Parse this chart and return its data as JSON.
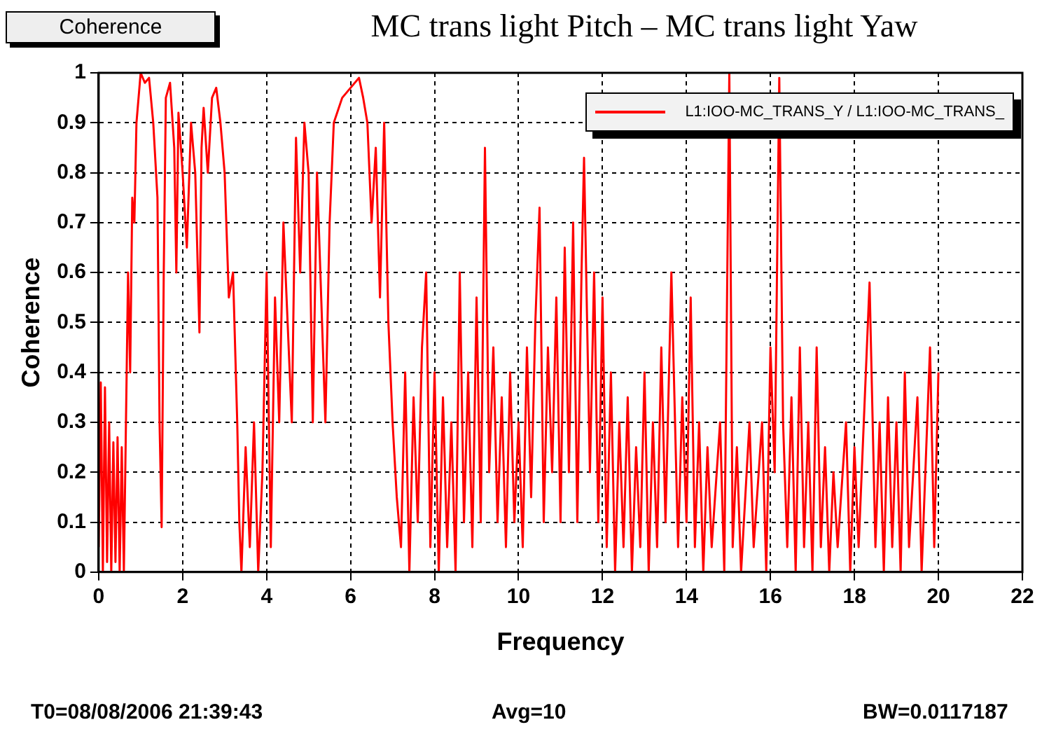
{
  "chart_data": {
    "type": "line",
    "title": "MC trans light Pitch – MC trans light Yaw",
    "xlabel": "Frequency",
    "ylabel": "Coherence",
    "annotations": [
      "Coherence",
      "T0=08/08/2006 21:39:43",
      "Avg=10",
      "BW=0.0117187"
    ],
    "xlim": [
      0,
      22
    ],
    "xticks": [
      0,
      2,
      4,
      6,
      8,
      10,
      12,
      14,
      16,
      18,
      20,
      22
    ],
    "ylim": [
      0,
      1
    ],
    "yticks": [
      0,
      0.1,
      0.2,
      0.3,
      0.4,
      0.5,
      0.6,
      0.7,
      0.8,
      0.9,
      1
    ],
    "grid": true,
    "legend": "top right",
    "marker": "none",
    "line_style": "solid",
    "series": [
      {
        "name": "L1:IOO-MC_TRANS_Y / L1:IOO-MC_TRANS_",
        "color": "#ff0000",
        "x": [
          0,
          0.05,
          0.1,
          0.15,
          0.2,
          0.25,
          0.3,
          0.35,
          0.4,
          0.45,
          0.5,
          0.55,
          0.6,
          0.65,
          0.7,
          0.75,
          0.8,
          0.85,
          0.9,
          1.0,
          1.1,
          1.2,
          1.3,
          1.4,
          1.45,
          1.5,
          1.55,
          1.6,
          1.7,
          1.8,
          1.85,
          1.9,
          2.0,
          2.1,
          2.2,
          2.3,
          2.4,
          2.45,
          2.5,
          2.6,
          2.7,
          2.8,
          2.9,
          3.0,
          3.1,
          3.2,
          3.3,
          3.35,
          3.4,
          3.5,
          3.6,
          3.7,
          3.8,
          3.9,
          4.0,
          4.1,
          4.2,
          4.3,
          4.4,
          4.5,
          4.6,
          4.7,
          4.8,
          4.9,
          5.0,
          5.1,
          5.2,
          5.3,
          5.4,
          5.5,
          5.6,
          5.8,
          6.0,
          6.2,
          6.3,
          6.4,
          6.5,
          6.6,
          6.7,
          6.8,
          6.9,
          7.0,
          7.1,
          7.2,
          7.3,
          7.4,
          7.5,
          7.6,
          7.7,
          7.8,
          7.9,
          8.0,
          8.1,
          8.2,
          8.3,
          8.4,
          8.5,
          8.6,
          8.7,
          8.8,
          8.9,
          9.0,
          9.1,
          9.2,
          9.3,
          9.4,
          9.5,
          9.6,
          9.7,
          9.8,
          9.9,
          10.0,
          10.1,
          10.2,
          10.3,
          10.4,
          10.5,
          10.6,
          10.7,
          10.8,
          10.9,
          11.0,
          11.1,
          11.2,
          11.3,
          11.4,
          11.5,
          11.56,
          11.7,
          11.8,
          11.9,
          12.0,
          12.1,
          12.2,
          12.3,
          12.4,
          12.5,
          12.6,
          12.7,
          12.8,
          12.9,
          13.0,
          13.1,
          13.2,
          13.3,
          13.4,
          13.5,
          13.64,
          13.8,
          13.9,
          14.0,
          14.1,
          14.2,
          14.3,
          14.4,
          14.5,
          14.6,
          14.8,
          14.9,
          15.02,
          15.1,
          15.2,
          15.3,
          15.5,
          15.6,
          15.8,
          15.9,
          16.0,
          16.1,
          16.21,
          16.3,
          16.4,
          16.5,
          16.6,
          16.7,
          16.8,
          16.9,
          17.0,
          17.1,
          17.2,
          17.3,
          17.4,
          17.5,
          17.6,
          17.8,
          17.9,
          18.0,
          18.1,
          18.36,
          18.5,
          18.6,
          18.7,
          18.8,
          18.9,
          19.0,
          19.1,
          19.2,
          19.3,
          19.5,
          19.6,
          19.8,
          19.9,
          20.0
        ],
        "values": [
          0.05,
          0.38,
          0.0,
          0.37,
          0.02,
          0.3,
          0.0,
          0.26,
          0.02,
          0.27,
          0.0,
          0.25,
          0.0,
          0.3,
          0.6,
          0.4,
          0.75,
          0.7,
          0.9,
          1.0,
          0.98,
          0.99,
          0.9,
          0.75,
          0.3,
          0.09,
          0.6,
          0.95,
          0.98,
          0.85,
          0.6,
          0.92,
          0.8,
          0.65,
          0.9,
          0.8,
          0.48,
          0.85,
          0.93,
          0.8,
          0.95,
          0.97,
          0.9,
          0.8,
          0.55,
          0.6,
          0.3,
          0.1,
          0.0,
          0.25,
          0.05,
          0.3,
          0.0,
          0.2,
          0.6,
          0.05,
          0.55,
          0.3,
          0.7,
          0.5,
          0.3,
          0.87,
          0.6,
          0.9,
          0.8,
          0.3,
          0.8,
          0.55,
          0.3,
          0.7,
          0.9,
          0.95,
          0.97,
          0.99,
          0.95,
          0.9,
          0.7,
          0.85,
          0.55,
          0.9,
          0.5,
          0.3,
          0.15,
          0.05,
          0.4,
          0.0,
          0.35,
          0.1,
          0.45,
          0.6,
          0.05,
          0.4,
          0.0,
          0.35,
          0.05,
          0.3,
          0.0,
          0.6,
          0.1,
          0.4,
          0.05,
          0.55,
          0.1,
          0.85,
          0.2,
          0.45,
          0.1,
          0.35,
          0.05,
          0.4,
          0.1,
          0.3,
          0.05,
          0.45,
          0.15,
          0.5,
          0.73,
          0.1,
          0.45,
          0.2,
          0.55,
          0.1,
          0.65,
          0.2,
          0.7,
          0.1,
          0.6,
          0.83,
          0.2,
          0.6,
          0.1,
          0.55,
          0.05,
          0.4,
          0.0,
          0.3,
          0.05,
          0.35,
          0.0,
          0.25,
          0.05,
          0.4,
          0.0,
          0.3,
          0.05,
          0.45,
          0.1,
          0.6,
          0.05,
          0.35,
          0.1,
          0.55,
          0.05,
          0.3,
          0.0,
          0.25,
          0.05,
          0.3,
          0.0,
          1.0,
          0.05,
          0.25,
          0.0,
          0.3,
          0.05,
          0.3,
          0.0,
          0.45,
          0.2,
          0.99,
          0.3,
          0.05,
          0.35,
          0.0,
          0.45,
          0.05,
          0.3,
          0.0,
          0.45,
          0.05,
          0.25,
          0.0,
          0.2,
          0.05,
          0.3,
          0.0,
          0.25,
          0.05,
          0.58,
          0.05,
          0.3,
          0.0,
          0.35,
          0.05,
          0.3,
          0.0,
          0.4,
          0.05,
          0.35,
          0.0,
          0.45,
          0.05,
          0.4
        ]
      }
    ]
  }
}
